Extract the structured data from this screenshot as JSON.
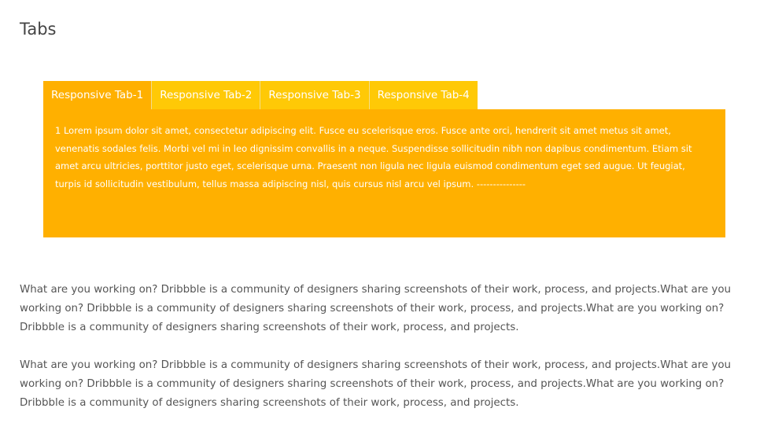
{
  "page": {
    "title": "Tabs"
  },
  "tabs": {
    "items": [
      {
        "label": "Responsive Tab-1",
        "active": true
      },
      {
        "label": "Responsive Tab-2",
        "active": false
      },
      {
        "label": "Responsive Tab-3",
        "active": false
      },
      {
        "label": "Responsive Tab-4",
        "active": false
      }
    ],
    "panel_text": "1 Lorem ipsum dolor sit amet, consectetur adipiscing elit. Fusce eu scelerisque eros. Fusce ante orci, hendrerit sit amet metus sit amet, venenatis sodales felis. Morbi vel mi in leo dignissim convallis in a neque. Suspendisse sollicitudin nibh non dapibus condimentum. Etiam sit amet arcu ultricies, porttitor justo eget, scelerisque urna. Praesent non ligula nec ligula euismod condimentum eget sed augue. Ut feugiat, turpis id sollicitudin vestibulum, tellus massa adipiscing nisl, quis cursus nisl arcu vel ipsum. ---------------"
  },
  "content": {
    "paragraphs": [
      "What are you working on? Dribbble is a community of designers sharing screenshots of their work, process, and projects.What are you working on? Dribbble is a community of designers sharing screenshots of their work, process, and projects.What are you working on? Dribbble is a community of designers sharing screenshots of their work, process, and projects.",
      "What are you working on? Dribbble is a community of designers sharing screenshots of their work, process, and projects.What are you working on? Dribbble is a community of designers sharing screenshots of their work, process, and projects.What are you working on? Dribbble is a community of designers sharing screenshots of their work, process, and projects."
    ]
  },
  "colors": {
    "tab_active": "#ffb000",
    "tab_inactive": "#ffc906",
    "panel_background": "#ffb000",
    "text": "#555555"
  }
}
